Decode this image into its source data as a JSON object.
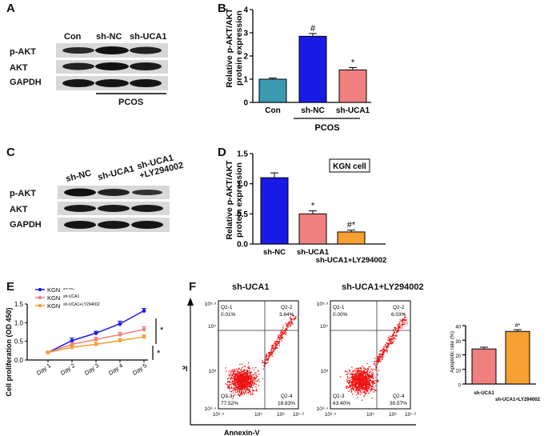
{
  "panel_letters": [
    "A",
    "B",
    "C",
    "D",
    "E",
    "F"
  ],
  "panel_a": {
    "columns": [
      "Con",
      "sh-NC",
      "sh-UCA1"
    ],
    "rows": [
      "p-AKT",
      "AKT",
      "GAPDH"
    ],
    "group_label": "PCOS"
  },
  "panel_c": {
    "columns": [
      "sh-NC",
      "sh-UCA1",
      "sh-UCA1\n+LY294002"
    ],
    "col1": "sh-NC",
    "col2": "sh-UCA1",
    "col3_line1": "sh-UCA1",
    "col3_line2": "+LY294002",
    "rows": [
      "p-AKT",
      "AKT",
      "GAPDH"
    ]
  },
  "panel_f": {
    "title_left": "sh-UCA1",
    "title_right": "sh-UCA1+LY294002",
    "ylabel": "PI",
    "xlabel": "Annexin-V",
    "left_quadrants": {
      "q1": "Q2-1",
      "q1v": "0.01%",
      "q2": "Q2-2",
      "q2v": "3.64%",
      "q3": "Q2-3",
      "q3v": "77.52%",
      "q4": "Q2-4",
      "q4v": "18.83%"
    },
    "right_quadrants": {
      "q1": "Q2-1",
      "q1v": "0.00%",
      "q2": "Q2-2",
      "q2v": "6.03%",
      "q3": "Q2-3",
      "q3v": "63.40%",
      "q4": "Q2-4",
      "q4v": "30.57%"
    },
    "y_ticks": [
      "10⁵·³",
      "10⁴",
      "10³",
      "10³·⁴"
    ],
    "x_ticks": [
      "10³·⁴",
      "10⁵",
      "10⁶",
      "10⁷·²"
    ]
  },
  "chart_data": [
    {
      "id": "B",
      "type": "bar",
      "categories": [
        "Con",
        "sh-NC",
        "sh-UCA1"
      ],
      "values": [
        1.0,
        2.85,
        1.4
      ],
      "errors": [
        0.05,
        0.12,
        0.1
      ],
      "colors": [
        "#3a9bb0",
        "#1a1ae6",
        "#f08080"
      ],
      "annotations": [
        "",
        "#",
        "*"
      ],
      "ylabel": "Relative p-AKT/AKT\nprotein expression",
      "ylabel_line1": "Relative p-AKT/AKT",
      "ylabel_line2": "protein expression",
      "ylim": [
        0,
        4
      ],
      "yticks": [
        "0",
        "1",
        "2",
        "3",
        "4"
      ],
      "group_label": "PCOS"
    },
    {
      "id": "D",
      "type": "bar",
      "categories": [
        "sh-NC",
        "sh-UCA1",
        "sh-UCA1+LY294002"
      ],
      "values": [
        1.1,
        0.5,
        0.2
      ],
      "errors": [
        0.08,
        0.05,
        0.03
      ],
      "colors": [
        "#1a1ae6",
        "#f08080",
        "#f5a030"
      ],
      "annotations": [
        "",
        "*",
        "#*"
      ],
      "ylabel_line1": "Relative p-AKT/AKT",
      "ylabel_line2": "protein expression",
      "ylim": [
        0,
        1.5
      ],
      "yticks": [
        "0.0",
        "0.5",
        "1.0",
        "1.5"
      ],
      "legend": "KGN cell"
    },
    {
      "id": "E",
      "type": "line",
      "categories": [
        "Day 1",
        "Day 2",
        "Day 3",
        "Day 4",
        "Day 5"
      ],
      "series": [
        {
          "name": "KGN",
          "sup": "sh-NC",
          "color": "#1a1ae6",
          "values": [
            0.2,
            0.52,
            0.72,
            0.97,
            1.32
          ],
          "errors": [
            0.02,
            0.07,
            0.05,
            0.07,
            0.06
          ]
        },
        {
          "name": "KGN",
          "sup": "sh-UCA1",
          "color": "#f08080",
          "values": [
            0.2,
            0.42,
            0.55,
            0.68,
            0.82
          ],
          "errors": [
            0.02,
            0.05,
            0.06,
            0.06,
            0.07
          ]
        },
        {
          "name": "KGN",
          "sup": "sh-UCA1+LY294002",
          "color": "#f5a030",
          "values": [
            0.2,
            0.34,
            0.42,
            0.52,
            0.62
          ],
          "errors": [
            0.02,
            0.04,
            0.05,
            0.05,
            0.05
          ]
        }
      ],
      "ylabel": "Cell proliferation (OD 450)",
      "ylim": [
        0,
        1.5
      ],
      "yticks": [
        "0.0",
        "0.5",
        "1.0",
        "1.5"
      ],
      "sig": [
        "*",
        "*"
      ]
    },
    {
      "id": "F-bar",
      "type": "bar",
      "categories": [
        "sh-UCA1",
        "sh-UCA1+LY294002"
      ],
      "values": [
        24,
        36
      ],
      "errors": [
        1.2,
        1.2
      ],
      "colors": [
        "#f08080",
        "#f5a030"
      ],
      "annotations": [
        "",
        "#*"
      ],
      "ylabel": "Apoptotic rate (%)",
      "ylim": [
        0,
        40
      ],
      "yticks": [
        "0",
        "10",
        "20",
        "30",
        "40"
      ]
    }
  ]
}
